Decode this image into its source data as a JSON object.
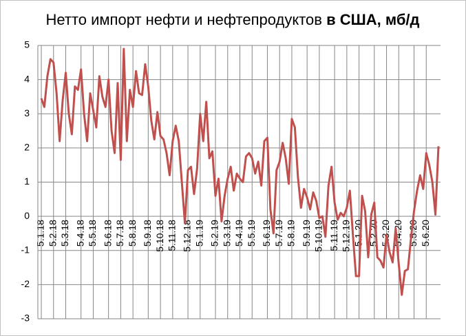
{
  "chart_data": {
    "type": "line",
    "title": [
      "Нетто импорт нефти и нефтепродуктов",
      "в США, мб/д"
    ],
    "categories": [
      "5.1.18",
      null,
      null,
      null,
      "5.2.18",
      null,
      null,
      null,
      "5.3.18",
      null,
      null,
      null,
      null,
      "5.4.18",
      null,
      null,
      null,
      "5.5.18",
      null,
      null,
      null,
      null,
      "5.6.18",
      null,
      null,
      null,
      "5.7.18",
      null,
      null,
      null,
      "5.8.18",
      null,
      null,
      null,
      null,
      "5.9.18",
      null,
      null,
      null,
      "5.10.18",
      null,
      null,
      null,
      "5.11.18",
      null,
      null,
      null,
      null,
      "5.12.18",
      null,
      null,
      null,
      "5.1.19",
      null,
      null,
      null,
      null,
      "5.2.19",
      null,
      null,
      null,
      "5.3.19",
      null,
      null,
      null,
      "5.4.19",
      null,
      null,
      null,
      "5.5.19",
      null,
      null,
      null,
      null,
      "5.6.19",
      null,
      null,
      null,
      "5.7.19",
      null,
      null,
      null,
      "5.8.19",
      null,
      null,
      null,
      null,
      "5.9.19",
      null,
      null,
      null,
      "5.10.19",
      null,
      null,
      null,
      null,
      "5.11.19",
      null,
      null,
      null,
      "5.12.19",
      null,
      null,
      null,
      "5.1.20",
      null,
      null,
      null,
      null,
      "5.2.20",
      null,
      null,
      null,
      "5.3.20",
      null,
      null,
      null,
      "5.4.20",
      null,
      null,
      null,
      null,
      "5.5.20",
      null,
      null,
      null,
      "5.6.20",
      null,
      null,
      null,
      null
    ],
    "series": [
      {
        "color": "#c0504d",
        "values": [
          3.45,
          3.2,
          4.1,
          4.6,
          4.5,
          3.6,
          2.2,
          3.4,
          4.2,
          3.0,
          2.4,
          3.8,
          3.7,
          4.3,
          3.0,
          2.2,
          3.6,
          3.1,
          2.6,
          4.1,
          3.5,
          3.2,
          4.0,
          2.5,
          1.85,
          3.9,
          1.65,
          4.9,
          2.2,
          3.7,
          3.2,
          4.25,
          3.6,
          3.55,
          4.45,
          3.8,
          2.8,
          2.25,
          3.05,
          2.35,
          2.25,
          1.85,
          1.2,
          2.2,
          2.65,
          2.2,
          1.0,
          -0.2,
          1.35,
          1.45,
          0.65,
          1.4,
          3.0,
          2.2,
          3.35,
          1.7,
          1.9,
          0.6,
          1.1,
          -0.15,
          0.6,
          1.1,
          1.45,
          0.75,
          1.25,
          1.1,
          1.0,
          1.75,
          1.85,
          1.7,
          1.25,
          1.6,
          0.9,
          2.2,
          2.3,
          0.2,
          -0.5,
          1.35,
          1.6,
          2.15,
          1.7,
          0.95,
          2.85,
          2.6,
          1.15,
          0.25,
          0.8,
          0.55,
          0.2,
          0.7,
          0.45,
          -0.05,
          0.0,
          -0.6,
          0.9,
          1.45,
          0.4,
          -0.1,
          0.1,
          0.0,
          0.25,
          0.75,
          -0.55,
          -1.75,
          -1.75,
          0.6,
          0.15,
          -1.2,
          0.05,
          0.4,
          -1.2,
          -1.3,
          -1.5,
          -0.55,
          -1.05,
          -1.35,
          -0.35,
          -1.4,
          -2.3,
          -1.6,
          -1.55,
          -0.65,
          0.15,
          0.75,
          1.2,
          0.8,
          1.85,
          1.5,
          1.0,
          0.05,
          2.05
        ]
      }
    ],
    "ylim": [
      -3,
      5
    ],
    "yticks": [
      -3,
      -2,
      -1,
      0,
      1,
      2,
      3,
      4,
      5
    ],
    "grid": true
  }
}
